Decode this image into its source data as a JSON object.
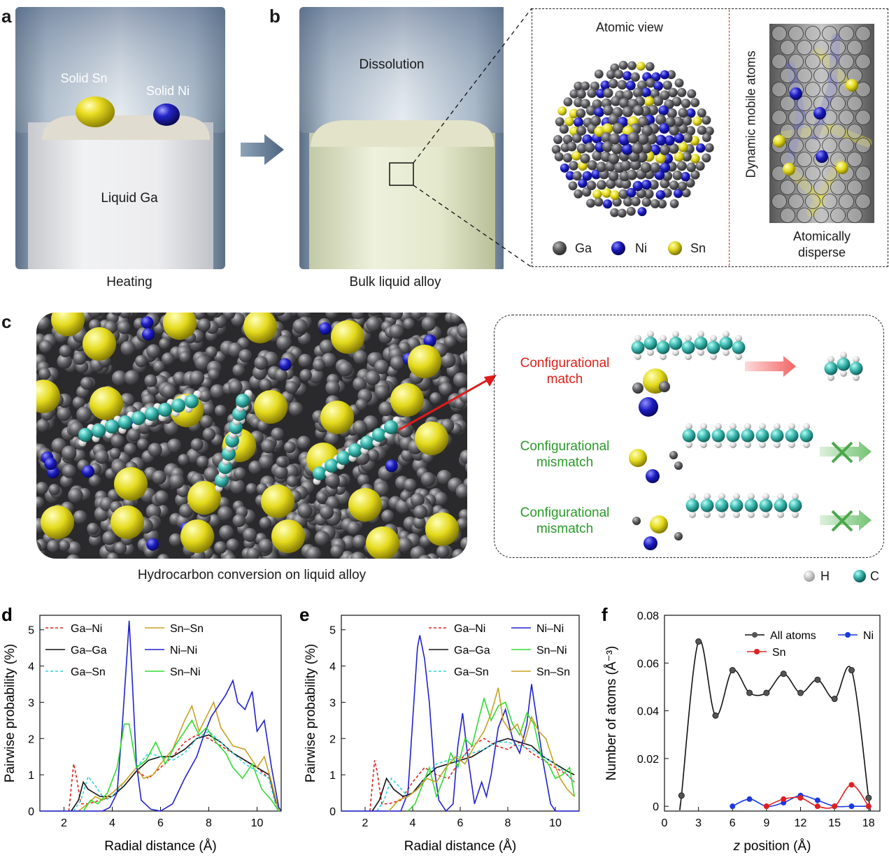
{
  "panels": {
    "a": {
      "label": "a",
      "solid_sn": "Solid Sn",
      "solid_ni": "Solid Ni",
      "liquid": "Liquid Ga",
      "caption": "Heating"
    },
    "b": {
      "label": "b",
      "top": "Dissolution",
      "caption": "Bulk liquid alloy",
      "atomic_view": "Atomic view",
      "side_label": "Dynamic mobile atoms",
      "disperse": "Atomically\ndisperse",
      "legend": [
        "Ga",
        "Ni",
        "Sn"
      ]
    },
    "c": {
      "label": "c",
      "caption": "Hydrocarbon conversion on liquid alloy",
      "match": "Configurational\nmatch",
      "mismatch1": "Configurational\nmismatch",
      "mismatch2": "Configurational\nmismatch",
      "legend": [
        "H",
        "C"
      ]
    }
  },
  "colors": {
    "ga": "#606062",
    "ni": "#1a1ab8",
    "sn": "#e0d81a",
    "c": "#3cb8b0",
    "h": "#f4f4f4",
    "match": "#e0201a",
    "mismatch": "#2a9a2a"
  },
  "chart_data": [
    {
      "id": "d",
      "type": "line",
      "label": "d",
      "xlabel": "Radial distance (Å)",
      "ylabel": "Pairwise probability (%)",
      "xlim": [
        1,
        11
      ],
      "ylim": [
        0,
        5.4
      ],
      "xticks": [
        2,
        4,
        6,
        8,
        10
      ],
      "yticks": [
        0,
        1,
        2,
        3,
        4,
        5
      ],
      "series": [
        {
          "name": "Ga–Ni",
          "color": "#e02020",
          "dash": "4,3",
          "x": [
            2.2,
            2.4,
            2.5,
            2.7,
            3.0,
            3.5,
            4.0,
            4.5,
            5.0,
            5.5,
            6.0,
            6.5,
            7.0,
            7.5,
            8.0,
            8.5,
            9.0,
            9.5,
            10.0,
            10.5,
            10.8
          ],
          "y": [
            0,
            1.3,
            1.0,
            0.2,
            0.2,
            0.3,
            0.4,
            0.7,
            1.1,
            0.9,
            1.2,
            1.5,
            1.9,
            2.1,
            2.0,
            1.8,
            1.6,
            1.4,
            1.2,
            0.9,
            0.1
          ]
        },
        {
          "name": "Ga–Ga",
          "color": "#111111",
          "dash": "",
          "x": [
            2.3,
            2.6,
            2.8,
            3.0,
            3.5,
            4.0,
            4.5,
            5.0,
            5.5,
            6.0,
            6.5,
            7.0,
            7.5,
            8.0,
            8.5,
            9.0,
            9.5,
            10.0,
            10.5,
            10.8
          ],
          "y": [
            0,
            0.3,
            0.8,
            0.6,
            0.4,
            0.4,
            0.7,
            1.1,
            1.4,
            1.5,
            1.5,
            1.7,
            2.0,
            2.1,
            1.9,
            1.6,
            1.4,
            1.2,
            1.0,
            0.2
          ]
        },
        {
          "name": "Ga–Sn",
          "color": "#30d0e0",
          "dash": "4,3",
          "x": [
            2.4,
            2.7,
            3.0,
            3.3,
            3.7,
            4.0,
            4.5,
            5.0,
            5.5,
            6.0,
            6.5,
            7.0,
            7.5,
            8.0,
            8.5,
            9.0,
            9.5,
            10.0,
            10.5,
            10.8
          ],
          "y": [
            0,
            0.3,
            0.95,
            0.7,
            0.3,
            0.4,
            0.8,
            1.2,
            1.6,
            1.5,
            1.4,
            1.6,
            2.0,
            2.2,
            1.9,
            1.6,
            1.3,
            1.1,
            0.9,
            0.1
          ]
        },
        {
          "name": "Sn–Sn",
          "color": "#c8a020",
          "dash": "",
          "x": [
            2.6,
            3.0,
            3.3,
            3.6,
            4.0,
            4.5,
            5.0,
            5.3,
            5.7,
            6.0,
            6.5,
            7.0,
            7.3,
            7.6,
            7.9,
            8.2,
            8.5,
            9.0,
            9.5,
            10.0,
            10.3,
            10.6,
            10.9
          ],
          "y": [
            0,
            0.2,
            0.4,
            0.3,
            0.5,
            0.8,
            1.2,
            0.9,
            1.0,
            1.3,
            1.7,
            2.5,
            2.9,
            2.2,
            2.6,
            3.0,
            2.3,
            1.8,
            1.7,
            1.2,
            1.5,
            0.8,
            0
          ]
        },
        {
          "name": "Ni–Ni",
          "color": "#2020d0",
          "dash": "",
          "x": [
            1.0,
            3.6,
            3.9,
            4.2,
            4.4,
            4.6,
            4.7,
            4.8,
            5.0,
            5.2,
            5.6,
            6.0,
            6.5,
            7.0,
            7.5,
            7.8,
            8.1,
            8.4,
            8.7,
            9.0,
            9.2,
            9.5,
            9.8,
            10.0,
            10.3,
            10.6,
            10.9,
            11.0
          ],
          "y": [
            0,
            0,
            0.1,
            0.5,
            2.2,
            4.2,
            5.25,
            4.0,
            1.3,
            0.3,
            0.05,
            0,
            0.2,
            0.9,
            1.5,
            2.1,
            2.6,
            2.9,
            3.2,
            3.6,
            3.0,
            2.8,
            3.3,
            2.2,
            2.5,
            1.2,
            0.1,
            0
          ]
        },
        {
          "name": "Sn–Ni",
          "color": "#30dd30",
          "dash": "",
          "x": [
            2.8,
            3.1,
            3.4,
            3.8,
            4.2,
            4.5,
            4.7,
            5.0,
            5.4,
            5.8,
            6.2,
            6.6,
            7.0,
            7.3,
            7.6,
            7.9,
            8.3,
            8.7,
            9.0,
            9.4,
            9.8,
            10.2,
            10.6,
            10.9
          ],
          "y": [
            0,
            0.3,
            0.2,
            0.5,
            1.2,
            2.4,
            2.4,
            1.2,
            1.4,
            1.9,
            1.3,
            1.8,
            2.2,
            2.5,
            2.1,
            2.3,
            1.9,
            1.6,
            1.2,
            0.9,
            1.3,
            0.6,
            0.3,
            0
          ]
        }
      ]
    },
    {
      "id": "e",
      "type": "line",
      "label": "e",
      "xlabel": "Radial distance (Å)",
      "ylabel": "Pairwise probability (%)",
      "xlim": [
        1,
        11
      ],
      "ylim": [
        0,
        5.4
      ],
      "xticks": [
        2,
        4,
        6,
        8,
        10
      ],
      "yticks": [
        0,
        1,
        2,
        3,
        4,
        5
      ],
      "series": [
        {
          "name": "Ga–Ni",
          "color": "#e02020",
          "dash": "4,3",
          "x": [
            2.2,
            2.4,
            2.5,
            2.7,
            3.0,
            3.5,
            4.0,
            4.5,
            5.0,
            5.5,
            6.0,
            6.5,
            7.0,
            7.5,
            8.0,
            8.5,
            9.0,
            9.5,
            10.0,
            10.5,
            10.8
          ],
          "y": [
            0,
            1.4,
            1.1,
            0.2,
            0.2,
            0.3,
            0.8,
            1.2,
            1.0,
            0.9,
            1.4,
            1.8,
            2.0,
            1.8,
            1.7,
            1.9,
            1.6,
            1.4,
            1.2,
            1.0,
            0.8
          ]
        },
        {
          "name": "Ga–Ga",
          "color": "#111111",
          "dash": "",
          "x": [
            2.3,
            2.6,
            2.9,
            3.2,
            3.6,
            4.0,
            4.5,
            5.0,
            5.5,
            6.0,
            6.5,
            7.0,
            7.5,
            8.0,
            8.5,
            9.0,
            9.5,
            10.0,
            10.5,
            10.8
          ],
          "y": [
            0,
            0.3,
            0.9,
            0.6,
            0.4,
            0.5,
            0.9,
            1.2,
            1.3,
            1.4,
            1.5,
            1.7,
            1.9,
            2.0,
            1.9,
            1.8,
            1.5,
            1.3,
            1.1,
            1.0
          ]
        },
        {
          "name": "Ga–Sn",
          "color": "#30d0e0",
          "dash": "4,3",
          "x": [
            2.5,
            2.8,
            3.1,
            3.4,
            3.8,
            4.2,
            4.6,
            5.0,
            5.5,
            6.0,
            6.5,
            7.0,
            7.5,
            8.0,
            8.5,
            9.0,
            9.5,
            10.0,
            10.5,
            10.8
          ],
          "y": [
            0,
            0.3,
            0.9,
            0.7,
            0.4,
            0.6,
            1.0,
            1.3,
            1.4,
            1.5,
            1.6,
            1.7,
            1.9,
            1.9,
            1.8,
            1.7,
            1.5,
            1.3,
            1.0,
            0.8
          ]
        },
        {
          "name": "Ni–Ni",
          "color": "#2020d0",
          "dash": "",
          "x": [
            1.0,
            3.5,
            3.8,
            4.0,
            4.2,
            4.3,
            4.5,
            4.7,
            4.9,
            5.1,
            5.4,
            5.7,
            5.9,
            6.1,
            6.3,
            6.6,
            6.9,
            7.1,
            7.3,
            7.6,
            7.9,
            8.2,
            8.5,
            8.8,
            9.0,
            9.2,
            9.5,
            9.8,
            10.0,
            10.2,
            10.4,
            11.0
          ],
          "y": [
            0,
            0,
            0.5,
            2.5,
            4.5,
            4.85,
            4.2,
            3.0,
            1.2,
            0.3,
            0,
            0.2,
            1.8,
            2.7,
            1.6,
            0.2,
            0.8,
            0.4,
            1.0,
            2.3,
            2.8,
            2.0,
            1.6,
            2.4,
            3.5,
            2.6,
            1.3,
            0.2,
            0,
            0,
            0,
            0
          ]
        },
        {
          "name": "Sn–Ni",
          "color": "#30dd30",
          "dash": "",
          "x": [
            3.8,
            4.1,
            4.4,
            4.7,
            5.0,
            5.3,
            5.6,
            5.9,
            6.2,
            6.5,
            6.8,
            7.0,
            7.3,
            7.6,
            7.9,
            8.2,
            8.5,
            8.8,
            9.1,
            9.4,
            9.7,
            10.0,
            10.3,
            10.6,
            10.8
          ],
          "y": [
            0,
            0.2,
            0.7,
            1.2,
            0.4,
            0.9,
            1.6,
            1.2,
            2.0,
            1.8,
            2.6,
            3.1,
            2.5,
            2.9,
            3.0,
            2.4,
            2.1,
            2.7,
            2.4,
            1.5,
            1.3,
            0.9,
            1.0,
            1.2,
            0.4
          ]
        },
        {
          "name": "Sn–Sn",
          "color": "#c8a020",
          "dash": "",
          "x": [
            3.0,
            3.4,
            3.8,
            4.2,
            4.6,
            5.0,
            5.4,
            5.8,
            6.2,
            6.6,
            7.0,
            7.3,
            7.6,
            7.8,
            8.1,
            8.4,
            8.7,
            9.0,
            9.3,
            9.6,
            9.9,
            10.2,
            10.5,
            10.8
          ],
          "y": [
            0,
            0.3,
            0.4,
            0.6,
            0.9,
            0.8,
            1.2,
            1.5,
            1.3,
            1.8,
            2.2,
            2.7,
            3.4,
            2.5,
            2.2,
            2.4,
            1.9,
            2.6,
            2.2,
            2.0,
            1.4,
            0.9,
            0.6,
            0.4
          ]
        }
      ]
    },
    {
      "id": "f",
      "type": "line",
      "label": "f",
      "xlabel": "z position (Å)",
      "ylabel": "Number of atoms (Å⁻³)",
      "xlim": [
        0,
        19
      ],
      "ylim": [
        -0.002,
        0.08
      ],
      "xticks": [
        0,
        3,
        6,
        9,
        12,
        15,
        18
      ],
      "yticks": [
        0,
        0.02,
        0.04,
        0.06,
        0.08
      ],
      "ytick_labels": [
        "0",
        "0.02",
        "0.04",
        "0.06",
        "0.08"
      ],
      "series": [
        {
          "name": "All atoms",
          "color": "#111111",
          "x": [
            1.4,
            1.5,
            3.0,
            4.5,
            6.0,
            7.5,
            9.0,
            10.5,
            12.0,
            13.5,
            15.0,
            16.5,
            18.0,
            18.1
          ],
          "y": [
            0.001,
            0.0045,
            0.069,
            0.038,
            0.057,
            0.0475,
            0.0475,
            0.0555,
            0.0475,
            0.053,
            0.045,
            0.057,
            0.0035,
            0.0
          ]
        },
        {
          "name": "Ni",
          "color": "#1a3ae0",
          "x": [
            6.0,
            7.5,
            9.0,
            10.5,
            12.0,
            13.5,
            15.0,
            16.5,
            18.0
          ],
          "y": [
            0.0,
            0.003,
            0.0,
            0.0015,
            0.0045,
            0.0025,
            0.0,
            0.0,
            0.0
          ]
        },
        {
          "name": "Sn",
          "color": "#e02020",
          "x": [
            9.0,
            10.5,
            12.0,
            13.5,
            15.0,
            16.5,
            18.0
          ],
          "y": [
            0.0,
            0.003,
            0.0035,
            0.0,
            0.0,
            0.009,
            0.0
          ]
        }
      ]
    }
  ]
}
